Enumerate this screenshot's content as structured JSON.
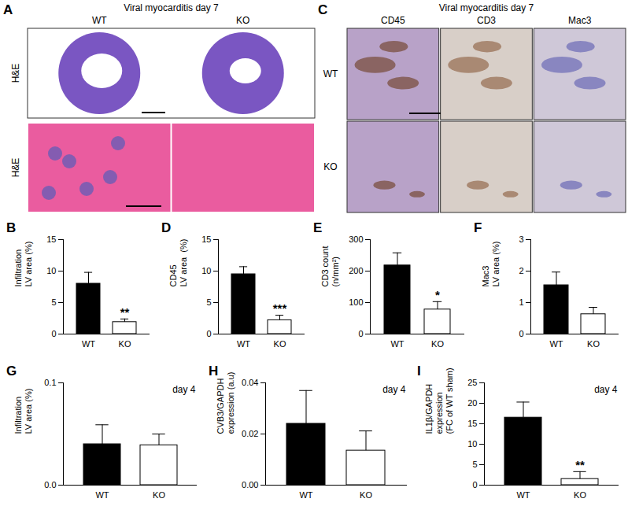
{
  "images": {
    "A": {
      "panel": "A",
      "title": "Viral myocarditis day 7",
      "columns": [
        "WT",
        "KO"
      ],
      "row_labels": [
        "H&E",
        "H&E"
      ]
    },
    "C": {
      "panel": "C",
      "title": "Viral myocarditis day 7",
      "columns": [
        "CD45",
        "CD3",
        "Mac3"
      ],
      "row_labels": [
        "WT",
        "KO"
      ]
    }
  },
  "chart_data": [
    {
      "panel": "B",
      "type": "bar",
      "y_label": [
        "Infiltration",
        "LV area (%)"
      ],
      "categories": [
        "WT",
        "KO"
      ],
      "values": [
        8.0,
        1.9
      ],
      "errors": [
        1.8,
        0.5
      ],
      "significance": [
        null,
        "**"
      ],
      "colors": [
        "#000000",
        "#ffffff"
      ],
      "ylim": [
        0,
        15
      ],
      "yticks": [
        0,
        5,
        10,
        15
      ]
    },
    {
      "panel": "D",
      "type": "bar",
      "y_label": [
        "CD45",
        "LV area  (%)"
      ],
      "categories": [
        "WT",
        "KO"
      ],
      "values": [
        9.5,
        2.2
      ],
      "errors": [
        1.2,
        0.8
      ],
      "significance": [
        null,
        "***"
      ],
      "colors": [
        "#000000",
        "#ffffff"
      ],
      "ylim": [
        0,
        15
      ],
      "yticks": [
        0,
        5,
        10,
        15
      ]
    },
    {
      "panel": "E",
      "type": "bar",
      "y_label": [
        "CD3 count",
        "(n/mm²)"
      ],
      "categories": [
        "WT",
        "KO"
      ],
      "values": [
        218,
        78
      ],
      "errors": [
        40,
        25
      ],
      "significance": [
        null,
        "*"
      ],
      "colors": [
        "#000000",
        "#ffffff"
      ],
      "ylim": [
        0,
        300
      ],
      "yticks": [
        0,
        100,
        200,
        300
      ]
    },
    {
      "panel": "F",
      "type": "bar",
      "y_label": [
        "Mac3",
        "LV area (%)"
      ],
      "categories": [
        "WT",
        "KO"
      ],
      "values": [
        1.55,
        0.63
      ],
      "errors": [
        0.42,
        0.22
      ],
      "significance": [
        null,
        null
      ],
      "colors": [
        "#000000",
        "#ffffff"
      ],
      "ylim": [
        0,
        3
      ],
      "yticks": [
        0,
        1,
        2,
        3
      ]
    },
    {
      "panel": "G",
      "type": "bar",
      "note": "day 4",
      "y_label": [
        "Infiltration",
        "LV area (%)"
      ],
      "categories": [
        "WT",
        "KO"
      ],
      "values": [
        0.04,
        0.039
      ],
      "errors": [
        0.019,
        0.011
      ],
      "significance": [
        null,
        null
      ],
      "colors": [
        "#000000",
        "#ffffff"
      ],
      "ylim": [
        0,
        0.1
      ],
      "yticks": [
        {
          "value": 0,
          "label": "0.0"
        },
        0.1
      ]
    },
    {
      "panel": "H",
      "type": "bar",
      "note": "day 4",
      "y_label": [
        "CVB3/GAPDH",
        "expression (a.u)"
      ],
      "categories": [
        "WT",
        "KO"
      ],
      "values": [
        0.024,
        0.0135
      ],
      "errors": [
        0.013,
        0.0077
      ],
      "significance": [
        null,
        null
      ],
      "colors": [
        "#000000",
        "#ffffff"
      ],
      "ylim": [
        0,
        0.04
      ],
      "yticks": [
        {
          "value": 0,
          "label": "0.00"
        },
        0.02,
        0.04
      ]
    },
    {
      "panel": "I",
      "type": "bar",
      "note": "day 4",
      "y_label": [
        "IL1β/GAPDH",
        "expression",
        "(FC of WT sham)"
      ],
      "categories": [
        "WT",
        "KO"
      ],
      "values": [
        16.5,
        1.5
      ],
      "errors": [
        3.8,
        1.8
      ],
      "significance": [
        null,
        "**"
      ],
      "colors": [
        "#000000",
        "#ffffff"
      ],
      "ylim": [
        0,
        25
      ],
      "yticks": [
        0,
        5,
        10,
        15,
        20,
        25
      ]
    }
  ]
}
